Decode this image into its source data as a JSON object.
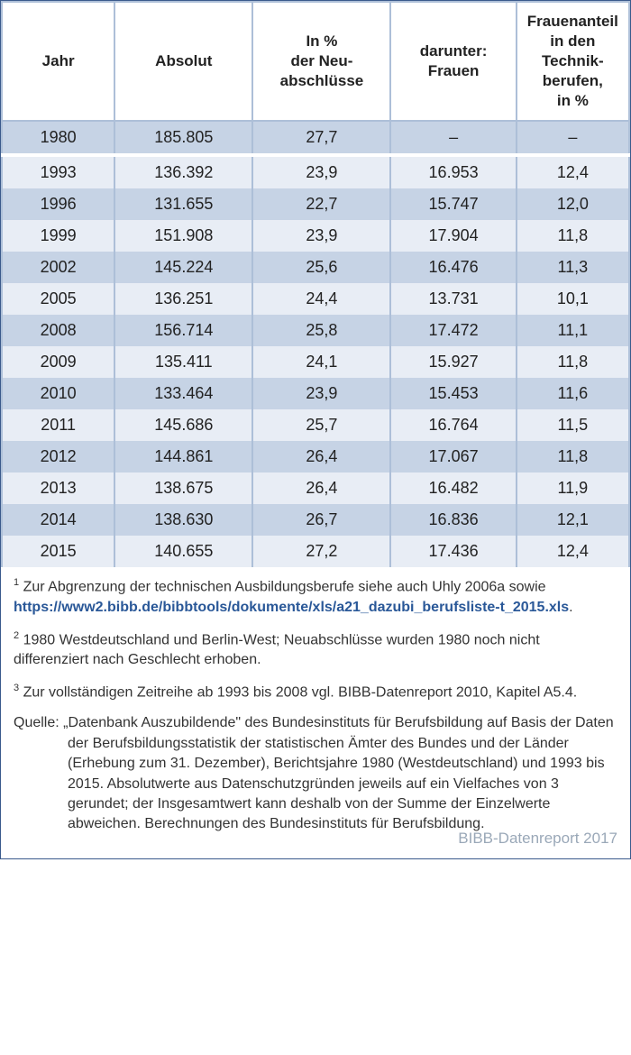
{
  "table": {
    "columns": [
      "Jahr",
      "Absolut",
      "In %\nder Neu-\nabschlüsse",
      "darunter:\nFrauen",
      "Frauenanteil\nin den\nTechnik-\nberufen,\nin %"
    ],
    "col_widths": [
      "18%",
      "22%",
      "22%",
      "20%",
      "18%"
    ],
    "header_bg": "#ffffff",
    "border_color": "#adbfd8",
    "row_even_bg": "#c6d3e5",
    "row_odd_bg": "#e8edf5",
    "text_color": "#222222",
    "font_size_header": 17,
    "font_size_cell": 18,
    "rows": [
      [
        "1980",
        "185.805",
        "27,7",
        "–",
        "–"
      ],
      [
        "1993",
        "136.392",
        "23,9",
        "16.953",
        "12,4"
      ],
      [
        "1996",
        "131.655",
        "22,7",
        "15.747",
        "12,0"
      ],
      [
        "1999",
        "151.908",
        "23,9",
        "17.904",
        "11,8"
      ],
      [
        "2002",
        "145.224",
        "25,6",
        "16.476",
        "11,3"
      ],
      [
        "2005",
        "136.251",
        "24,4",
        "13.731",
        "10,1"
      ],
      [
        "2008",
        "156.714",
        "25,8",
        "17.472",
        "11,1"
      ],
      [
        "2009",
        "135.411",
        "24,1",
        "15.927",
        "11,8"
      ],
      [
        "2010",
        "133.464",
        "23,9",
        "15.453",
        "11,6"
      ],
      [
        "2011",
        "145.686",
        "25,7",
        "16.764",
        "11,5"
      ],
      [
        "2012",
        "144.861",
        "26,4",
        "17.067",
        "11,8"
      ],
      [
        "2013",
        "138.675",
        "26,4",
        "16.482",
        "11,9"
      ],
      [
        "2014",
        "138.630",
        "26,7",
        "16.836",
        "12,1"
      ],
      [
        "2015",
        "140.655",
        "27,2",
        "17.436",
        "12,4"
      ]
    ],
    "special_gap_after_row": 0
  },
  "footnotes": {
    "font_size": 16,
    "text_color": "#333333",
    "link_color": "#2a5898",
    "note1_pre": "Zur Abgrenzung der technischen Ausbildungsberufe siehe auch Uhly 2006a sowie ",
    "note1_link": "https://www2.bibb.de/bibbtools/dokumente/xls/a21_dazubi_berufsliste-t_2015.xls",
    "note1_post": ".",
    "note2": "1980 Westdeutschland und Berlin-West; Neuabschlüsse wurden 1980 noch nicht differenziert nach Geschlecht erhoben.",
    "note3": "Zur vollständigen Zeitreihe ab 1993 bis 2008 vgl. BIBB-Datenreport 2010, Kapitel A5.4.",
    "quelle_label": "Quelle:",
    "quelle_text": "„Datenbank Auszubildende\" des Bundesinstituts für Berufsbildung auf Basis der Daten der Berufsbildungsstatistik der statistischen Ämter des Bundes und der Länder (Erhebung zum 31. Dezember), Berichtsjahre 1980 (Westdeutschland) und 1993 bis 2015. Absolutwerte aus Datenschutzgründen jeweils auf ein Vielfaches von 3 gerundet; der Insgesamtwert kann deshalb von der Summe der Einzelwerte abweichen. Berechnungen des Bundesinstituts für Berufsbildung."
  },
  "report_label": "BIBB-Datenreport 2017",
  "report_label_color": "#9aa8b8"
}
